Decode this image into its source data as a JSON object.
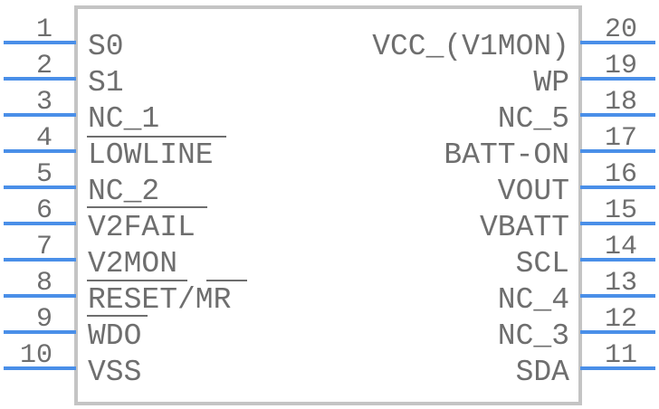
{
  "colors": {
    "pin": "#4a8fe8",
    "body": "#c4c4c4",
    "text": "#6e6e6e"
  },
  "left_pins": [
    {
      "number": "1",
      "name": "S0"
    },
    {
      "number": "2",
      "name": "S1"
    },
    {
      "number": "3",
      "name": "NC_1"
    },
    {
      "number": "4",
      "name": "LOWLINE"
    },
    {
      "number": "5",
      "name": "NC_2"
    },
    {
      "number": "6",
      "name": "V2FAIL"
    },
    {
      "number": "7",
      "name": "V2MON"
    },
    {
      "number": "8",
      "name": "RESET/MR"
    },
    {
      "number": "9",
      "name": "WDO"
    },
    {
      "number": "10",
      "name": "VSS"
    }
  ],
  "right_pins": [
    {
      "number": "20",
      "name": "VCC_(V1MON)"
    },
    {
      "number": "19",
      "name": "WP"
    },
    {
      "number": "18",
      "name": "NC_5"
    },
    {
      "number": "17",
      "name": "BATT-ON"
    },
    {
      "number": "16",
      "name": "VOUT"
    },
    {
      "number": "15",
      "name": "VBATT"
    },
    {
      "number": "14",
      "name": "SCL"
    },
    {
      "number": "13",
      "name": "NC_4"
    },
    {
      "number": "12",
      "name": "NC_3"
    },
    {
      "number": "11",
      "name": "SDA"
    }
  ]
}
